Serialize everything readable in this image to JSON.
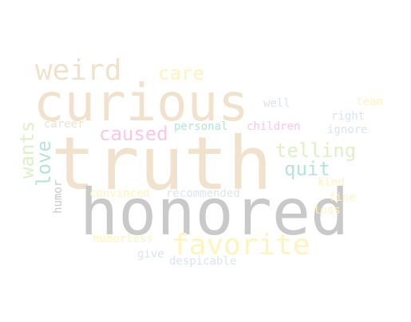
{
  "words": [
    {
      "id": "truth",
      "text": "truth",
      "color": "#f0e2cc"
    },
    {
      "id": "honored",
      "text": "honored",
      "color": "#c9c9c9"
    },
    {
      "id": "curious",
      "text": "curious",
      "color": "#f0e2cc"
    },
    {
      "id": "weird",
      "text": "weird",
      "color": "#f0e2cc"
    },
    {
      "id": "favorite",
      "text": "favorite",
      "color": "#fff3bf"
    },
    {
      "id": "care",
      "text": "care",
      "color": "#fff3bf"
    },
    {
      "id": "caused",
      "text": "caused",
      "color": "#f7c8e6"
    },
    {
      "id": "telling",
      "text": "telling",
      "color": "#dff0c8"
    },
    {
      "id": "quit",
      "text": "quit",
      "color": "#b7e4d4"
    },
    {
      "id": "wants",
      "text": "wants",
      "color": "#dff0c8"
    },
    {
      "id": "love",
      "text": "love",
      "color": "#b7e4d4"
    },
    {
      "id": "personal",
      "text": "personal",
      "color": "#b7e4d4"
    },
    {
      "id": "children",
      "text": "children",
      "color": "#f7c8e6"
    },
    {
      "id": "career",
      "text": "career",
      "color": "#f0e2cc"
    },
    {
      "id": "well",
      "text": "well",
      "color": "#dde3ef"
    },
    {
      "id": "team",
      "text": "team",
      "color": "#fff3bf"
    },
    {
      "id": "right",
      "text": "right",
      "color": "#dde3ef"
    },
    {
      "id": "ignore",
      "text": "ignore",
      "color": "#dde3ef"
    },
    {
      "id": "convinced",
      "text": "convinced",
      "color": "#fff3bf"
    },
    {
      "id": "recommended",
      "text": "recommended",
      "color": "#dde3ef"
    },
    {
      "id": "humor",
      "text": "humor",
      "color": "#c9c9c9"
    },
    {
      "id": "kind",
      "text": "kind",
      "color": "#fff3bf"
    },
    {
      "id": "fine",
      "text": "fine",
      "color": "#fff3bf"
    },
    {
      "id": "loss",
      "text": "loss",
      "color": "#fff3bf"
    },
    {
      "id": "humorless",
      "text": "humorless",
      "color": "#fff3bf"
    },
    {
      "id": "give",
      "text": "give",
      "color": "#dde3ef"
    },
    {
      "id": "despicable",
      "text": "despicable",
      "color": "#dde3ef"
    }
  ]
}
